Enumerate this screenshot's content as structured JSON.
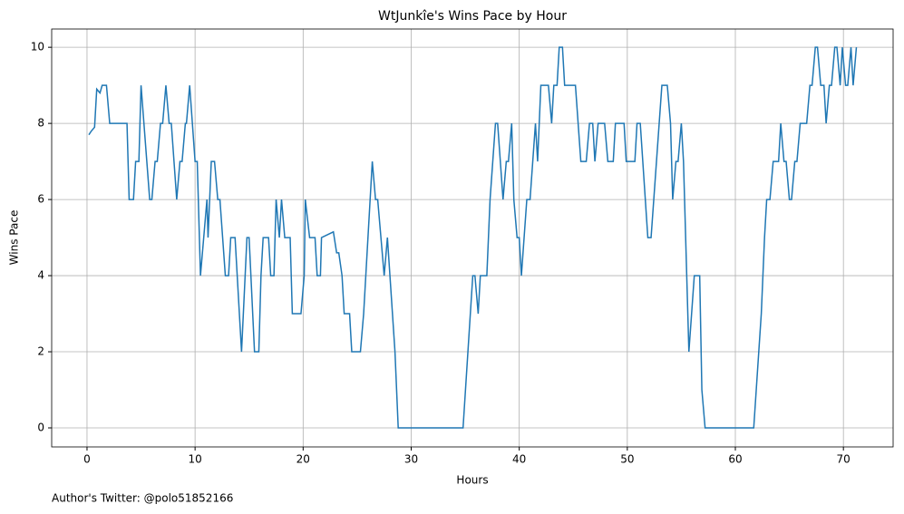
{
  "chart_data": {
    "type": "line",
    "title": "WtJunkîe's Wins Pace by Hour",
    "xlabel": "Hours",
    "ylabel": "Wins Pace",
    "annotation": "Author's Twitter: @polo51852166",
    "x": [
      0.17,
      0.4,
      0.7,
      0.9,
      1.2,
      1.4,
      1.8,
      2.1,
      3.7,
      3.9,
      4.3,
      4.5,
      4.8,
      5.0,
      5.8,
      6.0,
      6.3,
      6.5,
      6.8,
      7.0,
      7.3,
      7.6,
      7.8,
      8.3,
      8.6,
      8.8,
      9.1,
      9.2,
      9.5,
      10.0,
      10.2,
      10.5,
      11.1,
      11.2,
      11.5,
      11.8,
      12.1,
      12.3,
      12.8,
      13.1,
      13.3,
      13.7,
      14.3,
      14.8,
      15.0,
      15.5,
      15.9,
      16.1,
      16.3,
      16.8,
      17.0,
      17.3,
      17.5,
      17.8,
      18.0,
      18.3,
      18.8,
      19.0,
      19.8,
      20.1,
      20.2,
      20.6,
      21.1,
      21.3,
      21.6,
      21.7,
      22.8,
      23.1,
      23.3,
      23.6,
      23.8,
      24.3,
      24.5,
      25.3,
      25.6,
      26.4,
      26.7,
      26.9,
      27.5,
      27.8,
      28.5,
      28.8,
      34.8,
      35.7,
      35.9,
      36.2,
      36.4,
      37.0,
      37.3,
      37.8,
      38.0,
      38.5,
      38.8,
      39.0,
      39.3,
      39.5,
      39.8,
      40.0,
      40.2,
      40.7,
      41.0,
      41.5,
      41.7,
      42.0,
      42.7,
      43.0,
      43.2,
      43.5,
      43.7,
      44.0,
      44.2,
      45.2,
      45.7,
      46.2,
      46.5,
      46.8,
      47.0,
      47.3,
      47.9,
      48.2,
      48.7,
      48.9,
      49.7,
      49.9,
      50.7,
      50.9,
      51.2,
      51.9,
      52.2,
      53.2,
      53.7,
      54.0,
      54.2,
      54.5,
      54.7,
      55.0,
      55.2,
      55.7,
      56.2,
      56.7,
      56.9,
      57.2,
      61.7,
      62.4,
      62.7,
      62.9,
      63.2,
      63.5,
      64.0,
      64.2,
      64.5,
      64.7,
      65.0,
      65.2,
      65.5,
      65.7,
      66.0,
      66.6,
      66.9,
      67.1,
      67.4,
      67.6,
      67.9,
      68.2,
      68.4,
      68.7,
      68.9,
      69.2,
      69.4,
      69.7,
      69.9,
      70.2,
      70.4,
      70.7,
      70.9,
      71.2
    ],
    "series": [
      {
        "name": "Wins Pace",
        "color": "#1f77b4",
        "values": [
          7.7,
          7.8,
          7.9,
          8.9,
          8.8,
          9,
          9,
          8,
          8,
          6,
          6,
          7,
          7,
          9,
          6,
          6,
          7,
          7,
          8,
          8,
          9,
          8,
          8,
          6,
          7,
          7,
          8,
          8,
          9,
          7,
          7,
          4,
          6,
          5,
          7,
          7,
          6,
          6,
          4,
          4,
          5,
          5,
          2,
          5,
          5,
          2,
          2,
          4,
          5,
          5,
          4,
          4,
          6,
          5,
          6,
          5,
          5,
          3,
          3,
          4,
          6,
          5,
          5,
          4,
          4,
          5,
          5.15,
          4.6,
          4.6,
          4,
          3,
          3,
          2,
          2,
          3,
          7,
          6,
          6,
          4,
          5,
          2,
          0,
          0,
          4,
          4,
          3,
          4,
          4,
          6,
          8,
          8,
          6,
          7,
          7,
          8,
          6,
          5,
          5,
          4,
          6,
          6,
          8,
          7,
          9,
          9,
          8,
          9,
          9,
          10,
          10,
          9,
          9,
          7,
          7,
          8,
          8,
          7,
          8,
          8,
          7,
          7,
          8,
          8,
          7,
          7,
          8,
          8,
          5,
          5,
          9,
          9,
          8,
          6,
          7,
          7,
          8,
          7,
          2,
          4,
          4,
          1,
          0,
          0,
          3,
          5,
          6,
          6,
          7,
          7,
          8,
          7,
          7,
          6,
          6,
          7,
          7,
          8,
          8,
          9,
          9,
          10,
          10,
          9,
          9,
          8,
          9,
          9,
          10,
          10,
          9,
          10,
          9,
          9,
          10,
          9,
          10
        ]
      }
    ],
    "xlim": [
      -3.27,
      74.6
    ],
    "ylim": [
      -0.5,
      10.48
    ],
    "xticks": [
      0,
      10,
      20,
      30,
      40,
      50,
      60,
      70
    ],
    "yticks": [
      0,
      2,
      4,
      6,
      8,
      10
    ],
    "grid": true
  }
}
